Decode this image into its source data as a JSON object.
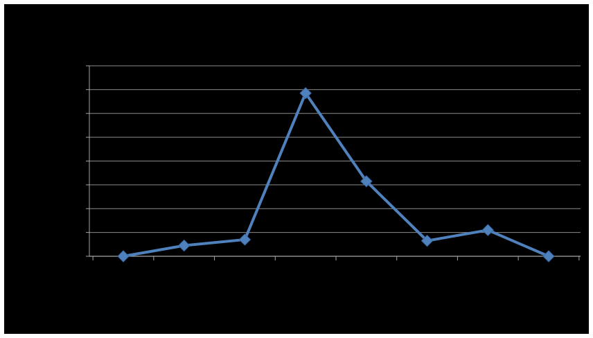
{
  "chart_data": {
    "type": "line",
    "title": "",
    "xlabel": "",
    "ylabel": "",
    "categories": [
      "",
      "",
      "",
      "",
      "",
      "",
      "",
      ""
    ],
    "series": [
      {
        "values": [
          0,
          0.45,
          0.7,
          6.85,
          3.15,
          0.65,
          1.1,
          0
        ]
      }
    ],
    "ylim": [
      0,
      8
    ],
    "y_step": 1,
    "grid": true,
    "legend": "none",
    "colors": {
      "background": "#000000",
      "grid": "#8c8c8c",
      "axis": "#a6a6a6",
      "series": "#4f81bd"
    }
  }
}
